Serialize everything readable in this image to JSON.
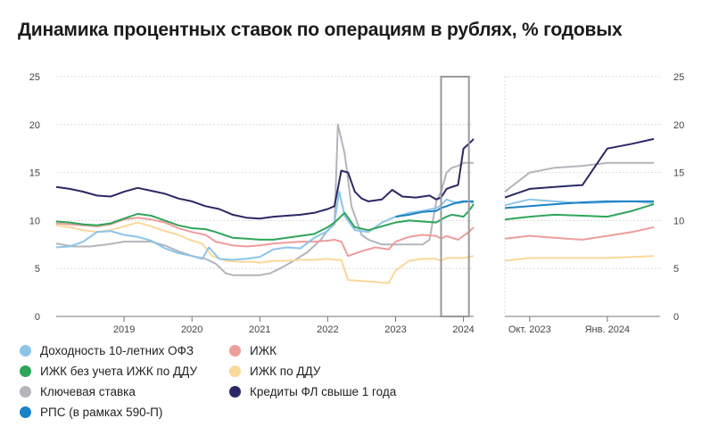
{
  "title": "Динамика процентных ставок по операциям в рублях, % годовых",
  "chart_data": {
    "type": "line",
    "ylim": [
      0,
      25
    ],
    "y_ticks": [
      "0",
      "5",
      "10",
      "15",
      "20",
      "25"
    ],
    "main_panel": {
      "x_range": [
        2018.0,
        2024.15
      ],
      "x_ticks": [
        {
          "value": 2019.0,
          "label": "2019"
        },
        {
          "value": 2020.0,
          "label": "2020"
        },
        {
          "value": 2021.0,
          "label": "2021"
        },
        {
          "value": 2022.0,
          "label": "2022"
        },
        {
          "value": 2023.0,
          "label": "2023"
        },
        {
          "value": 2024.0,
          "label": "2024"
        }
      ],
      "highlight_range": [
        2023.67,
        2024.08
      ]
    },
    "zoom_panel": {
      "x_range": [
        2023.67,
        2024.17
      ],
      "x_ticks": [
        {
          "value": 2023.75,
          "label": "Окт. 2023"
        },
        {
          "value": 2024.0,
          "label": "Янв. 2024"
        }
      ]
    },
    "series": [
      {
        "name": "Доходность 10-летних ОФЗ",
        "color": "#8cc5ea",
        "points": [
          [
            2018.0,
            7.2
          ],
          [
            2018.2,
            7.3
          ],
          [
            2018.4,
            7.8
          ],
          [
            2018.6,
            8.8
          ],
          [
            2018.8,
            8.9
          ],
          [
            2019.0,
            8.5
          ],
          [
            2019.2,
            8.3
          ],
          [
            2019.4,
            7.9
          ],
          [
            2019.6,
            7.1
          ],
          [
            2019.8,
            6.6
          ],
          [
            2020.0,
            6.3
          ],
          [
            2020.15,
            6.0
          ],
          [
            2020.25,
            7.2
          ],
          [
            2020.4,
            6.0
          ],
          [
            2020.6,
            5.9
          ],
          [
            2020.8,
            6.0
          ],
          [
            2021.0,
            6.2
          ],
          [
            2021.2,
            7.0
          ],
          [
            2021.4,
            7.2
          ],
          [
            2021.6,
            7.1
          ],
          [
            2021.8,
            8.2
          ],
          [
            2022.0,
            8.9
          ],
          [
            2022.1,
            9.8
          ],
          [
            2022.17,
            13.0
          ],
          [
            2022.25,
            10.5
          ],
          [
            2022.4,
            9.0
          ],
          [
            2022.6,
            8.8
          ],
          [
            2022.8,
            9.8
          ],
          [
            2023.0,
            10.4
          ],
          [
            2023.2,
            10.8
          ],
          [
            2023.4,
            11.0
          ],
          [
            2023.6,
            11.3
          ],
          [
            2023.67,
            11.6
          ],
          [
            2023.75,
            12.2
          ],
          [
            2023.83,
            12.0
          ],
          [
            2023.92,
            11.8
          ],
          [
            2024.0,
            11.9
          ],
          [
            2024.08,
            12.0
          ],
          [
            2024.15,
            11.8
          ]
        ]
      },
      {
        "name": "ИЖК",
        "color": "#ee9d9b",
        "points": [
          [
            2018.0,
            9.7
          ],
          [
            2018.2,
            9.6
          ],
          [
            2018.4,
            9.5
          ],
          [
            2018.6,
            9.4
          ],
          [
            2018.8,
            9.6
          ],
          [
            2019.0,
            10.1
          ],
          [
            2019.2,
            10.3
          ],
          [
            2019.4,
            10.1
          ],
          [
            2019.6,
            9.8
          ],
          [
            2019.8,
            9.2
          ],
          [
            2020.0,
            8.8
          ],
          [
            2020.2,
            8.5
          ],
          [
            2020.35,
            7.8
          ],
          [
            2020.6,
            7.4
          ],
          [
            2020.8,
            7.3
          ],
          [
            2021.0,
            7.4
          ],
          [
            2021.2,
            7.6
          ],
          [
            2021.4,
            7.7
          ],
          [
            2021.6,
            7.8
          ],
          [
            2021.8,
            7.8
          ],
          [
            2022.0,
            7.9
          ],
          [
            2022.1,
            8.0
          ],
          [
            2022.2,
            7.8
          ],
          [
            2022.3,
            6.3
          ],
          [
            2022.5,
            6.8
          ],
          [
            2022.7,
            7.2
          ],
          [
            2022.9,
            7.0
          ],
          [
            2023.0,
            7.8
          ],
          [
            2023.2,
            8.3
          ],
          [
            2023.4,
            8.5
          ],
          [
            2023.6,
            8.4
          ],
          [
            2023.67,
            8.1
          ],
          [
            2023.75,
            8.4
          ],
          [
            2023.83,
            8.2
          ],
          [
            2023.92,
            8.0
          ],
          [
            2024.0,
            8.4
          ],
          [
            2024.08,
            8.8
          ],
          [
            2024.15,
            9.3
          ]
        ]
      },
      {
        "name": "ИЖК без учета ИЖК по ДДУ",
        "color": "#2ea55a",
        "points": [
          [
            2018.0,
            9.9
          ],
          [
            2018.2,
            9.8
          ],
          [
            2018.4,
            9.6
          ],
          [
            2018.6,
            9.5
          ],
          [
            2018.8,
            9.7
          ],
          [
            2019.0,
            10.2
          ],
          [
            2019.2,
            10.7
          ],
          [
            2019.4,
            10.5
          ],
          [
            2019.6,
            10.0
          ],
          [
            2019.8,
            9.5
          ],
          [
            2020.0,
            9.2
          ],
          [
            2020.2,
            9.1
          ],
          [
            2020.35,
            8.8
          ],
          [
            2020.6,
            8.2
          ],
          [
            2020.8,
            8.1
          ],
          [
            2021.0,
            8.0
          ],
          [
            2021.2,
            8.0
          ],
          [
            2021.4,
            8.2
          ],
          [
            2021.6,
            8.4
          ],
          [
            2021.8,
            8.6
          ],
          [
            2022.0,
            9.3
          ],
          [
            2022.1,
            9.8
          ],
          [
            2022.25,
            10.8
          ],
          [
            2022.4,
            9.3
          ],
          [
            2022.6,
            9.0
          ],
          [
            2022.8,
            9.4
          ],
          [
            2023.0,
            9.8
          ],
          [
            2023.2,
            10.0
          ],
          [
            2023.4,
            9.9
          ],
          [
            2023.6,
            9.8
          ],
          [
            2023.67,
            10.1
          ],
          [
            2023.75,
            10.4
          ],
          [
            2023.83,
            10.6
          ],
          [
            2023.92,
            10.5
          ],
          [
            2024.0,
            10.4
          ],
          [
            2024.08,
            11.0
          ],
          [
            2024.15,
            11.7
          ]
        ]
      },
      {
        "name": "ИЖК по ДДУ",
        "color": "#fad899",
        "points": [
          [
            2018.0,
            9.5
          ],
          [
            2018.2,
            9.3
          ],
          [
            2018.4,
            9.0
          ],
          [
            2018.6,
            8.8
          ],
          [
            2018.8,
            9.0
          ],
          [
            2019.0,
            9.4
          ],
          [
            2019.2,
            9.8
          ],
          [
            2019.4,
            9.4
          ],
          [
            2019.6,
            8.9
          ],
          [
            2019.8,
            8.5
          ],
          [
            2020.0,
            7.9
          ],
          [
            2020.15,
            7.6
          ],
          [
            2020.3,
            6.3
          ],
          [
            2020.5,
            5.8
          ],
          [
            2020.7,
            5.7
          ],
          [
            2020.9,
            5.7
          ],
          [
            2021.0,
            5.6
          ],
          [
            2021.2,
            5.8
          ],
          [
            2021.4,
            5.8
          ],
          [
            2021.6,
            5.9
          ],
          [
            2021.8,
            5.9
          ],
          [
            2022.0,
            6.0
          ],
          [
            2022.1,
            5.9
          ],
          [
            2022.2,
            5.9
          ],
          [
            2022.3,
            3.8
          ],
          [
            2022.5,
            3.7
          ],
          [
            2022.7,
            3.6
          ],
          [
            2022.8,
            3.5
          ],
          [
            2022.9,
            3.5
          ],
          [
            2023.0,
            4.8
          ],
          [
            2023.2,
            5.8
          ],
          [
            2023.4,
            6.0
          ],
          [
            2023.6,
            6.0
          ],
          [
            2023.67,
            5.8
          ],
          [
            2023.75,
            6.1
          ],
          [
            2023.83,
            6.1
          ],
          [
            2023.92,
            6.1
          ],
          [
            2024.0,
            6.1
          ],
          [
            2024.08,
            6.2
          ],
          [
            2024.15,
            6.3
          ]
        ]
      },
      {
        "name": "Ключевая ставка",
        "color": "#b3b5bb",
        "points": [
          [
            2018.0,
            7.6
          ],
          [
            2018.25,
            7.3
          ],
          [
            2018.5,
            7.3
          ],
          [
            2018.75,
            7.5
          ],
          [
            2019.0,
            7.8
          ],
          [
            2019.4,
            7.8
          ],
          [
            2019.6,
            7.4
          ],
          [
            2019.8,
            6.8
          ],
          [
            2020.0,
            6.3
          ],
          [
            2020.2,
            6.0
          ],
          [
            2020.35,
            5.5
          ],
          [
            2020.5,
            4.5
          ],
          [
            2020.6,
            4.3
          ],
          [
            2020.8,
            4.3
          ],
          [
            2021.0,
            4.3
          ],
          [
            2021.15,
            4.5
          ],
          [
            2021.3,
            5.0
          ],
          [
            2021.5,
            5.8
          ],
          [
            2021.7,
            6.7
          ],
          [
            2021.9,
            8.0
          ],
          [
            2022.0,
            9.0
          ],
          [
            2022.1,
            9.6
          ],
          [
            2022.15,
            20.0
          ],
          [
            2022.25,
            17.0
          ],
          [
            2022.35,
            11.5
          ],
          [
            2022.5,
            8.5
          ],
          [
            2022.6,
            8.0
          ],
          [
            2022.8,
            7.5
          ],
          [
            2023.0,
            7.5
          ],
          [
            2023.2,
            7.5
          ],
          [
            2023.4,
            7.5
          ],
          [
            2023.5,
            8.0
          ],
          [
            2023.6,
            12.0
          ],
          [
            2023.67,
            13.0
          ],
          [
            2023.75,
            15.0
          ],
          [
            2023.83,
            15.5
          ],
          [
            2023.92,
            15.7
          ],
          [
            2024.0,
            16.0
          ],
          [
            2024.08,
            16.0
          ],
          [
            2024.15,
            16.0
          ]
        ]
      },
      {
        "name": "Кредиты ФЛ свыше 1 года",
        "color": "#2b2864",
        "points": [
          [
            2018.0,
            13.5
          ],
          [
            2018.2,
            13.3
          ],
          [
            2018.4,
            13.0
          ],
          [
            2018.6,
            12.6
          ],
          [
            2018.8,
            12.5
          ],
          [
            2019.0,
            13.0
          ],
          [
            2019.2,
            13.4
          ],
          [
            2019.4,
            13.1
          ],
          [
            2019.6,
            12.8
          ],
          [
            2019.8,
            12.3
          ],
          [
            2020.0,
            12.0
          ],
          [
            2020.2,
            11.5
          ],
          [
            2020.4,
            11.2
          ],
          [
            2020.6,
            10.6
          ],
          [
            2020.8,
            10.3
          ],
          [
            2021.0,
            10.2
          ],
          [
            2021.2,
            10.4
          ],
          [
            2021.4,
            10.5
          ],
          [
            2021.6,
            10.6
          ],
          [
            2021.8,
            10.8
          ],
          [
            2022.0,
            11.2
          ],
          [
            2022.1,
            11.5
          ],
          [
            2022.2,
            15.2
          ],
          [
            2022.3,
            15.0
          ],
          [
            2022.4,
            13.0
          ],
          [
            2022.5,
            12.3
          ],
          [
            2022.6,
            12.0
          ],
          [
            2022.8,
            12.2
          ],
          [
            2022.95,
            13.2
          ],
          [
            2023.1,
            12.5
          ],
          [
            2023.3,
            12.4
          ],
          [
            2023.5,
            12.6
          ],
          [
            2023.6,
            12.2
          ],
          [
            2023.67,
            12.4
          ],
          [
            2023.75,
            13.3
          ],
          [
            2023.83,
            13.5
          ],
          [
            2023.92,
            13.7
          ],
          [
            2024.0,
            17.5
          ],
          [
            2024.08,
            18.0
          ],
          [
            2024.15,
            18.5
          ]
        ]
      },
      {
        "name": "РПС (в рамках 590-П)",
        "color": "#1b82c4",
        "points": [
          [
            2023.0,
            10.4
          ],
          [
            2023.2,
            10.6
          ],
          [
            2023.4,
            10.9
          ],
          [
            2023.6,
            11.0
          ],
          [
            2023.67,
            11.3
          ],
          [
            2023.75,
            11.5
          ],
          [
            2023.83,
            11.7
          ],
          [
            2023.92,
            11.9
          ],
          [
            2024.0,
            12.0
          ],
          [
            2024.08,
            12.0
          ],
          [
            2024.15,
            12.0
          ]
        ]
      }
    ]
  },
  "legend": [
    {
      "label": "Доходность 10-летних ОФЗ",
      "color": "#8cc5ea"
    },
    {
      "label": "ИЖК",
      "color": "#ee9d9b"
    },
    {
      "label": "ИЖК без учета ИЖК по ДДУ",
      "color": "#2ea55a"
    },
    {
      "label": "ИЖК по ДДУ",
      "color": "#fad899"
    },
    {
      "label": "Ключевая ставка",
      "color": "#b3b5bb"
    },
    {
      "label": "Кредиты ФЛ свыше 1 года",
      "color": "#2b2864"
    },
    {
      "label": "РПС (в рамках 590-П)",
      "color": "#1b82c4"
    }
  ]
}
